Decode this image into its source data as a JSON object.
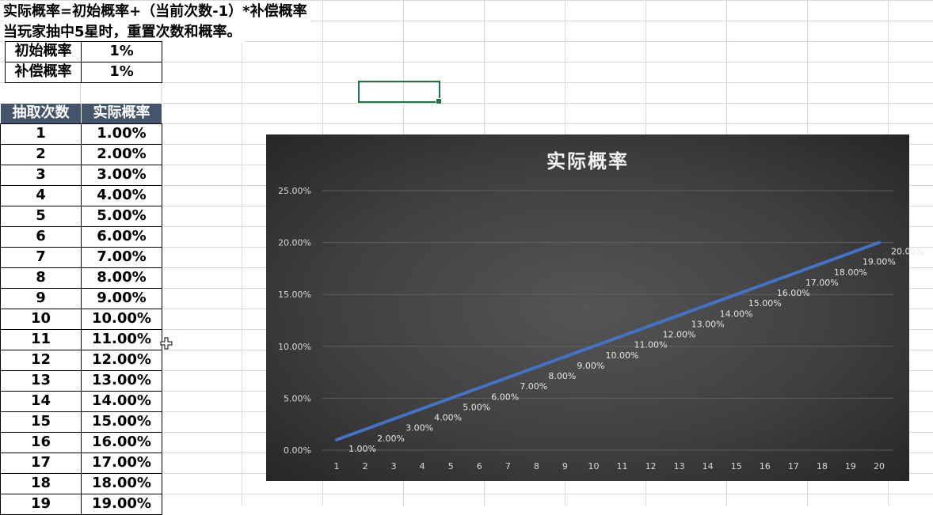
{
  "sheet": {
    "formula_line": "实际概率=初始概率+（当前次数-1）*补偿概率",
    "reset_note": "当玩家抽中5星时，重置次数和概率。",
    "params": [
      {
        "label": "初始概率",
        "value": "1%"
      },
      {
        "label": "补偿概率",
        "value": "1%"
      }
    ],
    "table": {
      "headers": [
        "抽取次数",
        "实际概率"
      ],
      "rows": [
        [
          "1",
          "1.00%"
        ],
        [
          "2",
          "2.00%"
        ],
        [
          "3",
          "3.00%"
        ],
        [
          "4",
          "4.00%"
        ],
        [
          "5",
          "5.00%"
        ],
        [
          "6",
          "6.00%"
        ],
        [
          "7",
          "7.00%"
        ],
        [
          "8",
          "8.00%"
        ],
        [
          "9",
          "9.00%"
        ],
        [
          "10",
          "10.00%"
        ],
        [
          "11",
          "11.00%"
        ],
        [
          "12",
          "12.00%"
        ],
        [
          "13",
          "13.00%"
        ],
        [
          "14",
          "14.00%"
        ],
        [
          "15",
          "15.00%"
        ],
        [
          "16",
          "16.00%"
        ],
        [
          "17",
          "17.00%"
        ],
        [
          "18",
          "18.00%"
        ],
        [
          "19",
          "19.00%"
        ]
      ]
    }
  },
  "colors": {
    "header_bg": "#44546a",
    "line": "#4472c4",
    "selection": "#217346"
  },
  "chart_data": {
    "type": "line",
    "title": "实际概率",
    "x": [
      "1",
      "2",
      "3",
      "4",
      "5",
      "6",
      "7",
      "8",
      "9",
      "10",
      "11",
      "12",
      "13",
      "14",
      "15",
      "16",
      "17",
      "18",
      "19",
      "20"
    ],
    "series": [
      {
        "values": [
          1,
          2,
          3,
          4,
          5,
          6,
          7,
          8,
          9,
          10,
          11,
          12,
          13,
          14,
          15,
          16,
          17,
          18,
          19,
          20
        ],
        "data_labels": [
          "1.00%",
          "2.00%",
          "3.00%",
          "4.00%",
          "5.00%",
          "6.00%",
          "7.00%",
          "8.00%",
          "9.00%",
          "10.00%",
          "11.00%",
          "12.00%",
          "13.00%",
          "14.00%",
          "15.00%",
          "16.00%",
          "17.00%",
          "18.00%",
          "19.00%",
          "20.00%"
        ]
      }
    ],
    "ylim": [
      0,
      25
    ],
    "yticks": [
      "0.00%",
      "5.00%",
      "10.00%",
      "15.00%",
      "20.00%",
      "25.00%"
    ],
    "grid": true,
    "legend": "none"
  }
}
